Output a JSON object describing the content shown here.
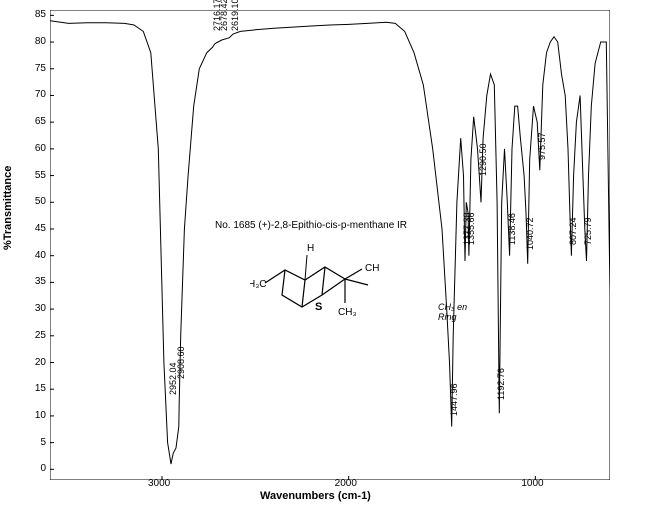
{
  "spectrum": {
    "type": "line",
    "title": "No. 1685 (+)-2,8-Epithio-cis-p-menthane IR",
    "title_fontsize": 10,
    "xlabel": "Wavenumbers (cm-1)",
    "ylabel": "%Transmittance",
    "label_fontsize": 11,
    "xlim": [
      3600,
      600
    ],
    "ylim": [
      -2,
      86
    ],
    "x_ticks": [
      3000,
      2000,
      1000
    ],
    "y_ticks": [
      0,
      5,
      10,
      15,
      20,
      25,
      30,
      35,
      40,
      45,
      50,
      55,
      60,
      65,
      70,
      75,
      80,
      85
    ],
    "line_color": "#000000",
    "background_color": "#ffffff",
    "grid": false,
    "x_reversed": true,
    "data": [
      [
        3600,
        84
      ],
      [
        3500,
        83.5
      ],
      [
        3400,
        83.6
      ],
      [
        3300,
        83.6
      ],
      [
        3200,
        83.5
      ],
      [
        3150,
        83.2
      ],
      [
        3100,
        82
      ],
      [
        3060,
        78
      ],
      [
        3020,
        60
      ],
      [
        2990,
        20
      ],
      [
        2970,
        5
      ],
      [
        2952,
        1
      ],
      [
        2940,
        3
      ],
      [
        2925,
        4
      ],
      [
        2910,
        8
      ],
      [
        2908,
        12.5
      ],
      [
        2900,
        25
      ],
      [
        2880,
        45
      ],
      [
        2860,
        55
      ],
      [
        2830,
        68
      ],
      [
        2800,
        75
      ],
      [
        2760,
        78
      ],
      [
        2730,
        79
      ],
      [
        2716,
        79.7
      ],
      [
        2700,
        80
      ],
      [
        2678,
        80.4
      ],
      [
        2640,
        80.8
      ],
      [
        2619,
        81.5
      ],
      [
        2580,
        82
      ],
      [
        2500,
        82.3
      ],
      [
        2400,
        82.6
      ],
      [
        2300,
        82.8
      ],
      [
        2200,
        83
      ],
      [
        2100,
        83.2
      ],
      [
        2000,
        83.3
      ],
      [
        1900,
        83.5
      ],
      [
        1800,
        83.7
      ],
      [
        1750,
        83.5
      ],
      [
        1700,
        82
      ],
      [
        1650,
        78
      ],
      [
        1600,
        72
      ],
      [
        1550,
        60
      ],
      [
        1500,
        45
      ],
      [
        1475,
        30
      ],
      [
        1460,
        20
      ],
      [
        1448,
        8
      ],
      [
        1440,
        25
      ],
      [
        1420,
        50
      ],
      [
        1400,
        62
      ],
      [
        1385,
        55
      ],
      [
        1377,
        39
      ],
      [
        1370,
        50
      ],
      [
        1360,
        48
      ],
      [
        1356,
        40
      ],
      [
        1345,
        58
      ],
      [
        1330,
        66
      ],
      [
        1310,
        60
      ],
      [
        1300,
        55
      ],
      [
        1291,
        50
      ],
      [
        1280,
        62
      ],
      [
        1260,
        70
      ],
      [
        1240,
        74
      ],
      [
        1220,
        72
      ],
      [
        1205,
        50
      ],
      [
        1193,
        10.5
      ],
      [
        1180,
        50
      ],
      [
        1165,
        60
      ],
      [
        1150,
        50
      ],
      [
        1138,
        40
      ],
      [
        1125,
        60
      ],
      [
        1110,
        68
      ],
      [
        1095,
        68
      ],
      [
        1080,
        62
      ],
      [
        1060,
        55
      ],
      [
        1050,
        48
      ],
      [
        1041,
        38.5
      ],
      [
        1030,
        58
      ],
      [
        1010,
        68
      ],
      [
        990,
        65
      ],
      [
        976,
        56
      ],
      [
        960,
        72
      ],
      [
        940,
        78
      ],
      [
        920,
        80
      ],
      [
        900,
        81
      ],
      [
        880,
        80
      ],
      [
        860,
        74
      ],
      [
        840,
        70
      ],
      [
        825,
        60
      ],
      [
        815,
        48
      ],
      [
        807,
        40
      ],
      [
        795,
        55
      ],
      [
        780,
        65
      ],
      [
        760,
        70
      ],
      [
        745,
        55
      ],
      [
        735,
        45
      ],
      [
        726,
        39
      ],
      [
        715,
        55
      ],
      [
        700,
        68
      ],
      [
        680,
        76
      ],
      [
        650,
        80
      ],
      [
        620,
        80
      ],
      [
        600,
        33
      ]
    ],
    "peak_labels": [
      {
        "text": "2952.04",
        "wn": 2952,
        "y": 14,
        "rotate": -90
      },
      {
        "text": "2908.60",
        "wn": 2908,
        "y": 17,
        "rotate": -90
      },
      {
        "text": "2716.17, 79.734",
        "wn": 2716,
        "y": 82,
        "rotate": -90
      },
      {
        "text": "2678.42, 80.388",
        "wn": 2678,
        "y": 82,
        "rotate": -90
      },
      {
        "text": "2619.10, 81.524",
        "wn": 2619,
        "y": 82,
        "rotate": -90
      },
      {
        "text": "1447.96",
        "wn": 1448,
        "y": 10,
        "rotate": -90
      },
      {
        "text": "1377.38",
        "wn": 1377,
        "y": 42,
        "rotate": -90
      },
      {
        "text": "1355.66",
        "wn": 1356,
        "y": 42,
        "rotate": -90
      },
      {
        "text": "1290.50",
        "wn": 1291,
        "y": 55,
        "rotate": -90
      },
      {
        "text": "1192.76",
        "wn": 1193,
        "y": 13,
        "rotate": -90
      },
      {
        "text": "1138.46",
        "wn": 1138,
        "y": 42,
        "rotate": -90
      },
      {
        "text": "1040.72",
        "wn": 1041,
        "y": 41,
        "rotate": -90
      },
      {
        "text": "975.57",
        "wn": 976,
        "y": 58,
        "rotate": -90
      },
      {
        "text": "807.24",
        "wn": 807,
        "y": 42,
        "rotate": -90
      },
      {
        "text": "725.79",
        "wn": 726,
        "y": 42,
        "rotate": -90
      }
    ],
    "structure": {
      "atoms_text": [
        "H",
        "H₃C",
        "S",
        "CH₃",
        "CH₃"
      ]
    },
    "ring_annotation": "CH₃ en Ring"
  }
}
